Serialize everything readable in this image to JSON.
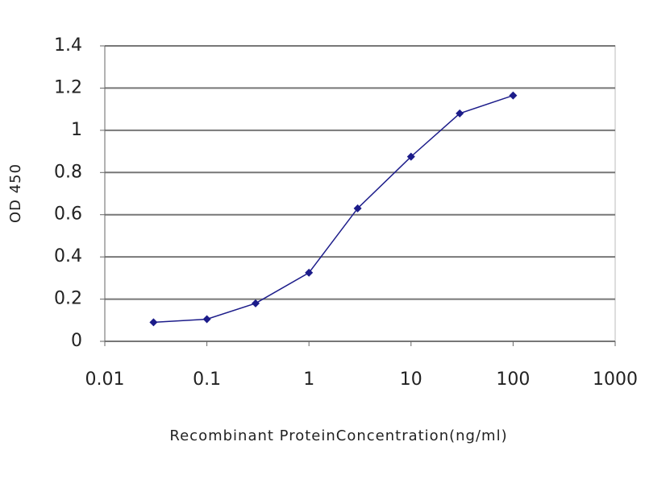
{
  "chart_data": {
    "type": "line",
    "x_label": "Recombinant ProteinConcentration(ng/ml)",
    "y_label": "OD 450",
    "x": [
      0.03,
      0.1,
      0.3,
      1,
      3,
      10,
      30,
      100
    ],
    "series": [
      {
        "color": "#1c1c8a",
        "values": [
          0.09,
          0.105,
          0.18,
          0.325,
          0.63,
          0.875,
          1.08,
          1.165
        ]
      }
    ],
    "xlim": [
      0.01,
      1000
    ],
    "xticks": [
      0.01,
      0.1,
      1,
      10,
      100,
      1000
    ],
    "x_log": true,
    "ylim": [
      0,
      1.4
    ],
    "yticks": [
      0,
      0.2,
      0.4,
      0.6,
      0.8,
      1,
      1.2,
      1.4
    ],
    "grid": true
  }
}
